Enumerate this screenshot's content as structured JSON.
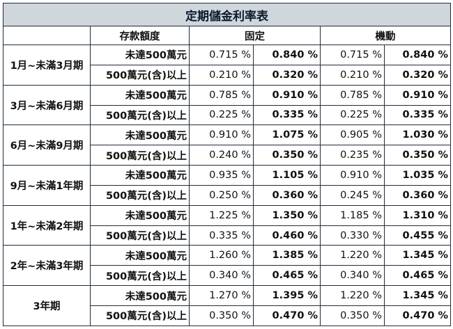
{
  "title": "定期儲金利率表",
  "headers": {
    "amount": "存款額度",
    "fixed": "固定",
    "floating": "機動"
  },
  "periods": [
    {
      "term": "1月~未滿3月期",
      "rows": [
        {
          "tier": "未達500萬元",
          "fixed_base": "0.715 %",
          "fixed_special": "0.840 %",
          "float_base": "0.715 %",
          "float_special": "0.840 %"
        },
        {
          "tier": "500萬元(含)以上",
          "fixed_base": "0.210 %",
          "fixed_special": "0.320 %",
          "float_base": "0.210 %",
          "float_special": "0.320 %"
        }
      ]
    },
    {
      "term": "3月~未滿6月期",
      "rows": [
        {
          "tier": "未達500萬元",
          "fixed_base": "0.785 %",
          "fixed_special": "0.910 %",
          "float_base": "0.785 %",
          "float_special": "0.910 %"
        },
        {
          "tier": "500萬元(含)以上",
          "fixed_base": "0.225 %",
          "fixed_special": "0.335 %",
          "float_base": "0.225 %",
          "float_special": "0.335 %"
        }
      ]
    },
    {
      "term": "6月~未滿9月期",
      "rows": [
        {
          "tier": "未達500萬元",
          "fixed_base": "0.910 %",
          "fixed_special": "1.075 %",
          "float_base": "0.905 %",
          "float_special": "1.030 %"
        },
        {
          "tier": "500萬元(含)以上",
          "fixed_base": "0.240 %",
          "fixed_special": "0.350 %",
          "float_base": "0.235 %",
          "float_special": "0.350 %"
        }
      ]
    },
    {
      "term": "9月~未滿1年期",
      "rows": [
        {
          "tier": "未達500萬元",
          "fixed_base": "0.935 %",
          "fixed_special": "1.105 %",
          "float_base": "0.910 %",
          "float_special": "1.035 %"
        },
        {
          "tier": "500萬元(含)以上",
          "fixed_base": "0.250 %",
          "fixed_special": "0.360 %",
          "float_base": "0.245 %",
          "float_special": "0.360 %"
        }
      ]
    },
    {
      "term": "1年~未滿2年期",
      "rows": [
        {
          "tier": "未達500萬元",
          "fixed_base": "1.225 %",
          "fixed_special": "1.350 %",
          "float_base": "1.185 %",
          "float_special": "1.310 %"
        },
        {
          "tier": "500萬元(含)以上",
          "fixed_base": "0.335 %",
          "fixed_special": "0.460 %",
          "float_base": "0.330 %",
          "float_special": "0.455 %"
        }
      ]
    },
    {
      "term": "2年~未滿3年期",
      "rows": [
        {
          "tier": "未達500萬元",
          "fixed_base": "1.260 %",
          "fixed_special": "1.385 %",
          "float_base": "1.220 %",
          "float_special": "1.345 %"
        },
        {
          "tier": "500萬元(含)以上",
          "fixed_base": "0.340 %",
          "fixed_special": "0.465 %",
          "float_base": "0.340 %",
          "float_special": "0.465 %"
        }
      ]
    },
    {
      "term": "3年期",
      "rows": [
        {
          "tier": "未達500萬元",
          "fixed_base": "1.270 %",
          "fixed_special": "1.395 %",
          "float_base": "1.220 %",
          "float_special": "1.345 %"
        },
        {
          "tier": "500萬元(含)以上",
          "fixed_base": "0.350 %",
          "fixed_special": "0.470 %",
          "float_base": "0.350 %",
          "float_special": "0.470 %"
        }
      ]
    }
  ]
}
